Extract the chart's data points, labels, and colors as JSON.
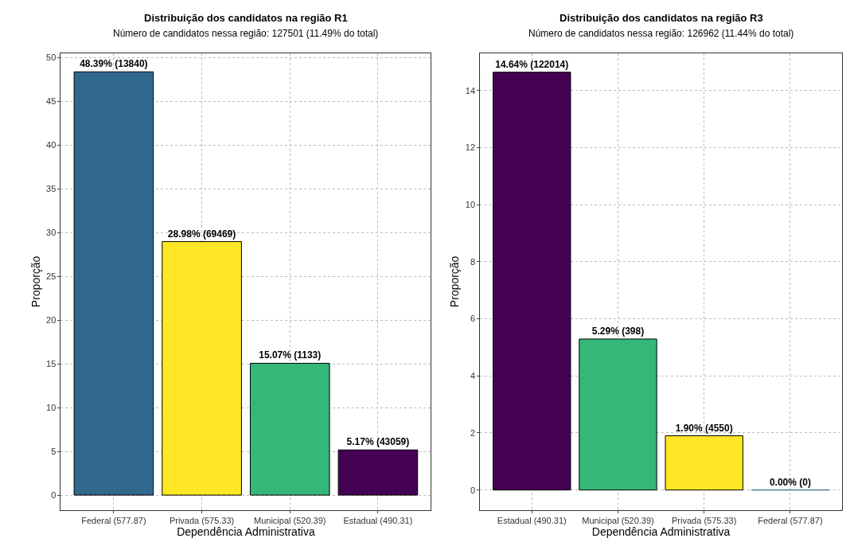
{
  "chart_data": [
    {
      "type": "bar",
      "title": "Distribuição dos candidatos na região R1",
      "subtitle": "Número de candidatos nessa região: 127501 (11.49% do total)",
      "xlabel": "Dependência Administrativa",
      "ylabel": "Proporção",
      "categories": [
        "Federal (577.87)",
        "Privada (575.33)",
        "Municipal (520.39)",
        "Estadual (490.31)"
      ],
      "values": [
        48.39,
        28.98,
        15.07,
        5.17
      ],
      "colors": [
        "#31688e",
        "#fde725",
        "#35b779",
        "#440154"
      ],
      "value_labels": [
        "48.39% (13840)",
        "28.98% (69469)",
        "15.07% (1133)",
        "5.17% (43059)"
      ],
      "ylim": [
        -1.7,
        50.5
      ],
      "yticks": [
        0,
        5,
        10,
        15,
        20,
        25,
        30,
        35,
        40,
        45,
        50
      ],
      "grid": true
    },
    {
      "type": "bar",
      "title": "Distribuição dos candidatos na região R3",
      "subtitle": "Número de candidatos nessa região: 126962 (11.44% do total)",
      "xlabel": "Dependência Administrativa",
      "ylabel": "Proporção",
      "categories": [
        "Estadual (490.31)",
        "Municipal (520.39)",
        "Privada (575.33)",
        "Federal (577.87)"
      ],
      "values": [
        14.64,
        5.29,
        1.9,
        0.0
      ],
      "colors": [
        "#440154",
        "#35b779",
        "#fde725",
        "#31688e"
      ],
      "value_labels": [
        "14.64% (122014)",
        "5.29% (398)",
        "1.90% (4550)",
        "0.00% (0)"
      ],
      "ylim": [
        -0.7,
        15.3
      ],
      "yticks": [
        0,
        2,
        4,
        6,
        8,
        10,
        12,
        14
      ],
      "grid": true
    }
  ]
}
